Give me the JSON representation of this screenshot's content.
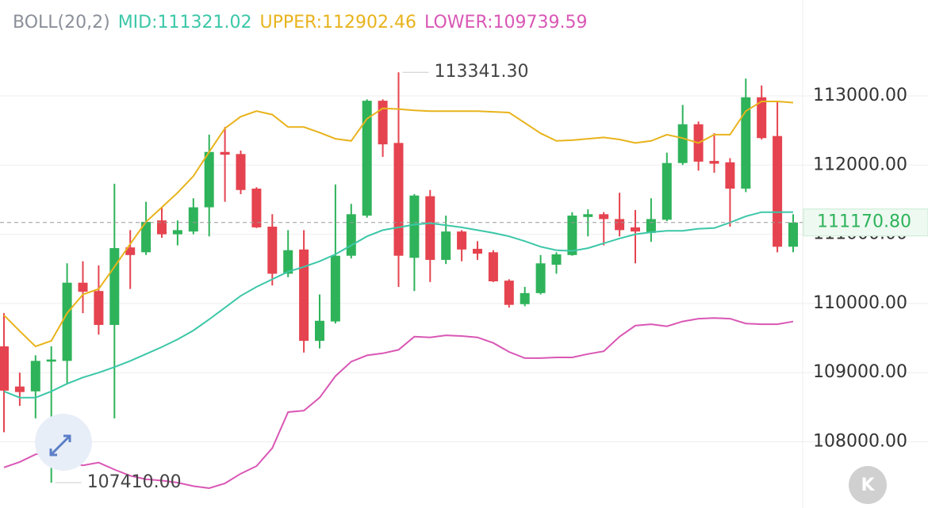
{
  "chart_data": {
    "type": "candlestick",
    "header": [
      {
        "label": "BOLL(20,2)",
        "color": "#8a8f99"
      },
      {
        "label": "MID:111321.02",
        "color": "#3cc7a8"
      },
      {
        "label": "UPPER:112902.46",
        "color": "#e8b31c"
      },
      {
        "label": "LOWER:109739.59",
        "color": "#d957b5"
      }
    ],
    "ylim": [
      107044,
      114386
    ],
    "yticks": [
      {
        "value": 108000,
        "label": "108000.00"
      },
      {
        "value": 109000,
        "label": "109000.00"
      },
      {
        "value": 110000,
        "label": "110000.00"
      },
      {
        "value": 111000,
        "label": "111000.00"
      },
      {
        "value": 112000,
        "label": "112000.00"
      },
      {
        "value": 113000,
        "label": "113000.00"
      }
    ],
    "grid": true,
    "up_color": "#2eb35a",
    "down_color": "#e5434f",
    "candles": {
      "open": [
        109380,
        108800,
        108730,
        109160,
        109170,
        110300,
        110180,
        109690,
        110810,
        110740,
        111200,
        111000,
        111040,
        111390,
        112190,
        112160,
        111660,
        111110,
        110430,
        110780,
        109460,
        109740,
        110690,
        111270,
        112930,
        112320,
        110660,
        111550,
        110630,
        111040,
        110790,
        110740,
        110330,
        109990,
        110150,
        110560,
        110700,
        111250,
        111290,
        111220,
        111100,
        111020,
        111210,
        112030,
        112590,
        112060,
        112040,
        111660,
        112980,
        112420,
        110820
      ],
      "high": [
        109860,
        109000,
        109250,
        109380,
        110580,
        110610,
        110550,
        111730,
        111060,
        111470,
        111390,
        111200,
        111520,
        112440,
        112550,
        112210,
        111680,
        111290,
        111060,
        111060,
        110130,
        111720,
        111440,
        112950,
        112950,
        113341.3,
        111580,
        111640,
        111270,
        111060,
        110900,
        110770,
        110350,
        110240,
        110700,
        110740,
        111320,
        111360,
        111320,
        111600,
        111350,
        111520,
        112180,
        112870,
        112630,
        112460,
        112100,
        113250,
        113150,
        112920,
        111290
      ],
      "low": [
        108140,
        108520,
        108340,
        107410,
        108840,
        109860,
        109550,
        108340,
        110210,
        110700,
        110950,
        110840,
        111000,
        110970,
        111470,
        111580,
        111090,
        110260,
        110380,
        109290,
        109350,
        109710,
        110650,
        111240,
        112120,
        110240,
        110180,
        110310,
        110570,
        110610,
        110630,
        110310,
        109940,
        109960,
        110130,
        110430,
        110690,
        110970,
        110840,
        110970,
        110580,
        110890,
        111190,
        112000,
        111920,
        111890,
        111110,
        111610,
        112370,
        110740,
        110740
      ],
      "close": [
        108740,
        108720,
        109170,
        109190,
        110300,
        110170,
        109690,
        110800,
        110700,
        111180,
        111000,
        111060,
        111390,
        112190,
        112150,
        111640,
        111100,
        110430,
        110770,
        109460,
        109750,
        110690,
        111290,
        112930,
        112300,
        110690,
        111560,
        110630,
        111040,
        110780,
        110720,
        110320,
        109980,
        110150,
        110580,
        110710,
        111270,
        111290,
        111220,
        111060,
        111040,
        111220,
        112030,
        112590,
        112050,
        112020,
        111660,
        112980,
        112390,
        110820,
        111170
      ]
    },
    "lines": [
      {
        "color": "#e8b31c",
        "values": [
          109830,
          109600,
          109380,
          109460,
          109860,
          110130,
          110210,
          110530,
          110860,
          111180,
          111390,
          111600,
          111840,
          112190,
          112530,
          112700,
          112780,
          112730,
          112550,
          112550,
          112470,
          112380,
          112350,
          112670,
          112820,
          112810,
          112790,
          112780,
          112780,
          112780,
          112780,
          112770,
          112760,
          112610,
          112460,
          112350,
          112360,
          112380,
          112400,
          112370,
          112320,
          112350,
          112440,
          112390,
          112320,
          112440,
          112440,
          112780,
          112920,
          112920,
          112902.46
        ]
      },
      {
        "color": "#3cc7a8",
        "values": [
          108730,
          108640,
          108640,
          108730,
          108840,
          108930,
          109000,
          109080,
          109170,
          109270,
          109370,
          109480,
          109610,
          109770,
          109940,
          110110,
          110240,
          110350,
          110460,
          110530,
          110610,
          110710,
          110840,
          110970,
          111060,
          111100,
          111140,
          111160,
          111130,
          111100,
          111060,
          111020,
          110970,
          110900,
          110820,
          110770,
          110760,
          110800,
          110870,
          110940,
          111000,
          111030,
          111050,
          111050,
          111080,
          111090,
          111170,
          111260,
          111320,
          111320,
          111321.02
        ]
      },
      {
        "color": "#d957b5",
        "values": [
          107630,
          107710,
          107820,
          107850,
          107720,
          107660,
          107700,
          107600,
          107510,
          107460,
          107440,
          107410,
          107360,
          107330,
          107400,
          107540,
          107650,
          107910,
          108430,
          108450,
          108640,
          108950,
          109160,
          109250,
          109280,
          109330,
          109520,
          109510,
          109540,
          109530,
          109510,
          109430,
          109300,
          109210,
          109210,
          109220,
          109220,
          109270,
          109310,
          109520,
          109680,
          109700,
          109670,
          109740,
          109780,
          109790,
          109780,
          109710,
          109700,
          109700,
          109739.59
        ]
      }
    ],
    "last_price": {
      "value": 111170.8,
      "label": "111170.80"
    },
    "high_label": "113341.30",
    "low_label": "107410.00",
    "logo": "K"
  }
}
